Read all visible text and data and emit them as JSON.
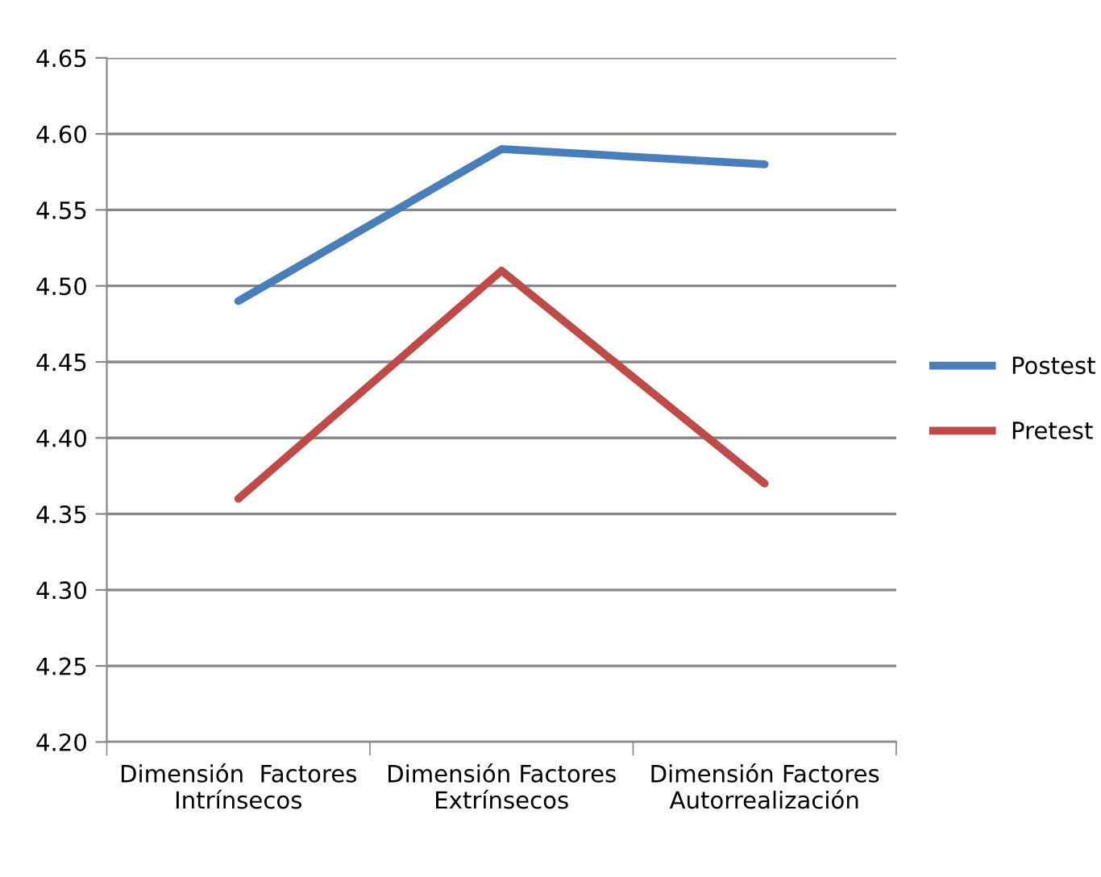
{
  "chart_data": {
    "type": "line",
    "categories": [
      "Dimensión  Factores\nIntrínsecos",
      "Dimensión Factores\nExtrínsecos",
      "Dimensión Factores\nAutorrealización"
    ],
    "series": [
      {
        "name": "Postest",
        "color": "#4a7ebb",
        "values": [
          4.49,
          4.59,
          4.58
        ]
      },
      {
        "name": "Pretest",
        "color": "#be4b48",
        "values": [
          4.36,
          4.51,
          4.37
        ]
      }
    ],
    "ylim": [
      4.2,
      4.65
    ],
    "yticks": [
      {
        "value": 4.2,
        "label": "4.20"
      },
      4.25,
      {
        "value": 4.3,
        "label": "4.30"
      },
      4.35,
      {
        "value": 4.4,
        "label": "4.40"
      },
      4.45,
      {
        "value": 4.5,
        "label": "4.50"
      },
      4.55,
      {
        "value": 4.6,
        "label": "4.60"
      },
      4.65
    ],
    "grid": "y",
    "legend": "right",
    "marker": "none",
    "line_style": "solid"
  }
}
